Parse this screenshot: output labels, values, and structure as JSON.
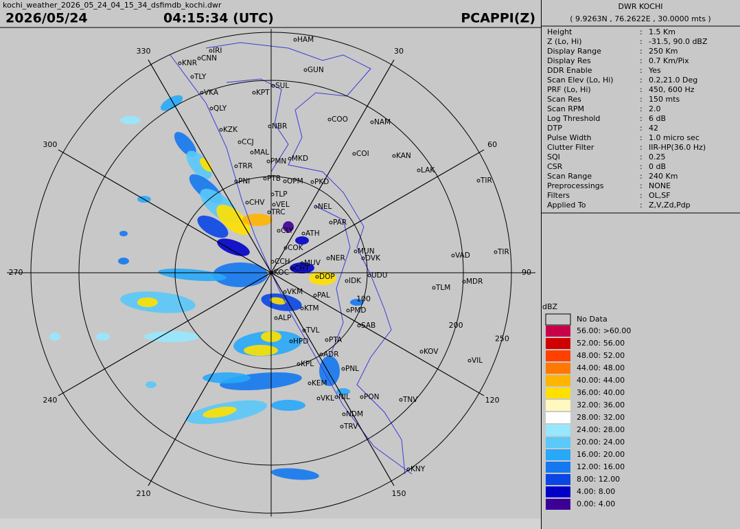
{
  "header": {
    "filename": "kochi_weather_2026_05_24_04_15_34_dsfimdb_kochi.dwr",
    "date": "2026/05/24",
    "time": "04:15:34 (UTC)",
    "product": "PCAPPI(Z)"
  },
  "station": {
    "name": "DWR KOCHI",
    "coordinates": "( 9.9263N , 76.2622E , 30.0000 mts )"
  },
  "parameters": {
    "separator": ":",
    "rows": [
      [
        "Height",
        "1.5 Km"
      ],
      [
        "Z (Lo, Hi)",
        "-31.5, 90.0 dBZ"
      ],
      [
        "Display Range",
        "250 Km"
      ],
      [
        "Display Res",
        "0.7 Km/Pix"
      ],
      [
        "DDR Enable",
        "Yes"
      ],
      [
        "Scan Elev (Lo, Hi)",
        "0.2,21.0 Deg"
      ],
      [
        "PRF (Lo, Hi)",
        "450, 600 Hz"
      ],
      [
        "Scan Res",
        "150 mts"
      ],
      [
        "Scan RPM",
        "2.0"
      ],
      [
        "Log Threshold",
        "6 dB"
      ],
      [
        "DTP",
        "42"
      ],
      [
        "Pulse Width",
        "1.0 micro sec"
      ],
      [
        "Clutter Filter",
        "IIR-HP(36.0 Hz)"
      ],
      [
        "SQI",
        "0.25"
      ],
      [
        "CSR",
        "0 dB"
      ],
      [
        "Scan Range",
        "240 Km"
      ],
      [
        "Preprocessings",
        "NONE"
      ],
      [
        "Filters",
        "OL,SF"
      ],
      [
        "Applied To",
        "Z,V,Zd,Pdp"
      ]
    ]
  },
  "legend": {
    "title": "dBZ",
    "no_data": "No Data",
    "items": [
      {
        "label": "56.00: >60.00",
        "color": "#c8004a"
      },
      {
        "label": "52.00: 56.00",
        "color": "#d00000"
      },
      {
        "label": "48.00: 52.00",
        "color": "#ff4000"
      },
      {
        "label": "44.00: 48.00",
        "color": "#ff7800"
      },
      {
        "label": "40.00: 44.00",
        "color": "#ffb400"
      },
      {
        "label": "36.00: 40.00",
        "color": "#ffe000"
      },
      {
        "label": "32.00: 36.00",
        "color": "#fff8c0"
      },
      {
        "label": "28.00: 32.00",
        "color": "#ffffff"
      },
      {
        "label": "24.00: 28.00",
        "color": "#96e8ff"
      },
      {
        "label": "20.00: 24.00",
        "color": "#5ac8f8"
      },
      {
        "label": "16.00: 20.00",
        "color": "#28a8f8"
      },
      {
        "label": "12.00: 16.00",
        "color": "#1478f0"
      },
      {
        "label": "8.00: 12.00",
        "color": "#0a46e6"
      },
      {
        "label": "4.00: 8.00",
        "color": "#0000c8"
      },
      {
        "label": "0.00: 4.00",
        "color": "#3c0096"
      }
    ]
  },
  "azimuth_labels": [
    30,
    60,
    90,
    120,
    150,
    210,
    240,
    270,
    300,
    330
  ],
  "range_labels": [
    100,
    200,
    250
  ],
  "places": [
    "HAM",
    "IRI",
    "KNR",
    "CNN",
    "GUN",
    "TLY",
    "VKA",
    "KPT",
    "SUL",
    "QLY",
    "COO",
    "NAM",
    "NBR",
    "KZK",
    "CCJ",
    "MAL",
    "COI",
    "KAN",
    "PMN",
    "MKD",
    "TRR",
    "LAK",
    "PNI",
    "PTB",
    "OPM",
    "PKD",
    "TIR",
    "CHV",
    "TLP",
    "VEL",
    "NEL",
    "TRC",
    "PAR",
    "CLY",
    "ATH",
    "COK",
    "MUN",
    "DVK",
    "VAD",
    "TIR",
    "NER",
    "CCH",
    "MUV",
    "UDU",
    "MDR",
    "KOC",
    "CHT",
    "DOP",
    "IDK",
    "TLM",
    "VKM",
    "PAL",
    "ALP",
    "KTM",
    "PMD",
    "SAB",
    "TVL",
    "PTA",
    "HPD",
    "KOV",
    "VIL",
    "ADR",
    "KPL",
    "PNL",
    "KEM",
    "VKL",
    "NIL",
    "PON",
    "TNV",
    "NDM",
    "TRV",
    "KNY"
  ]
}
